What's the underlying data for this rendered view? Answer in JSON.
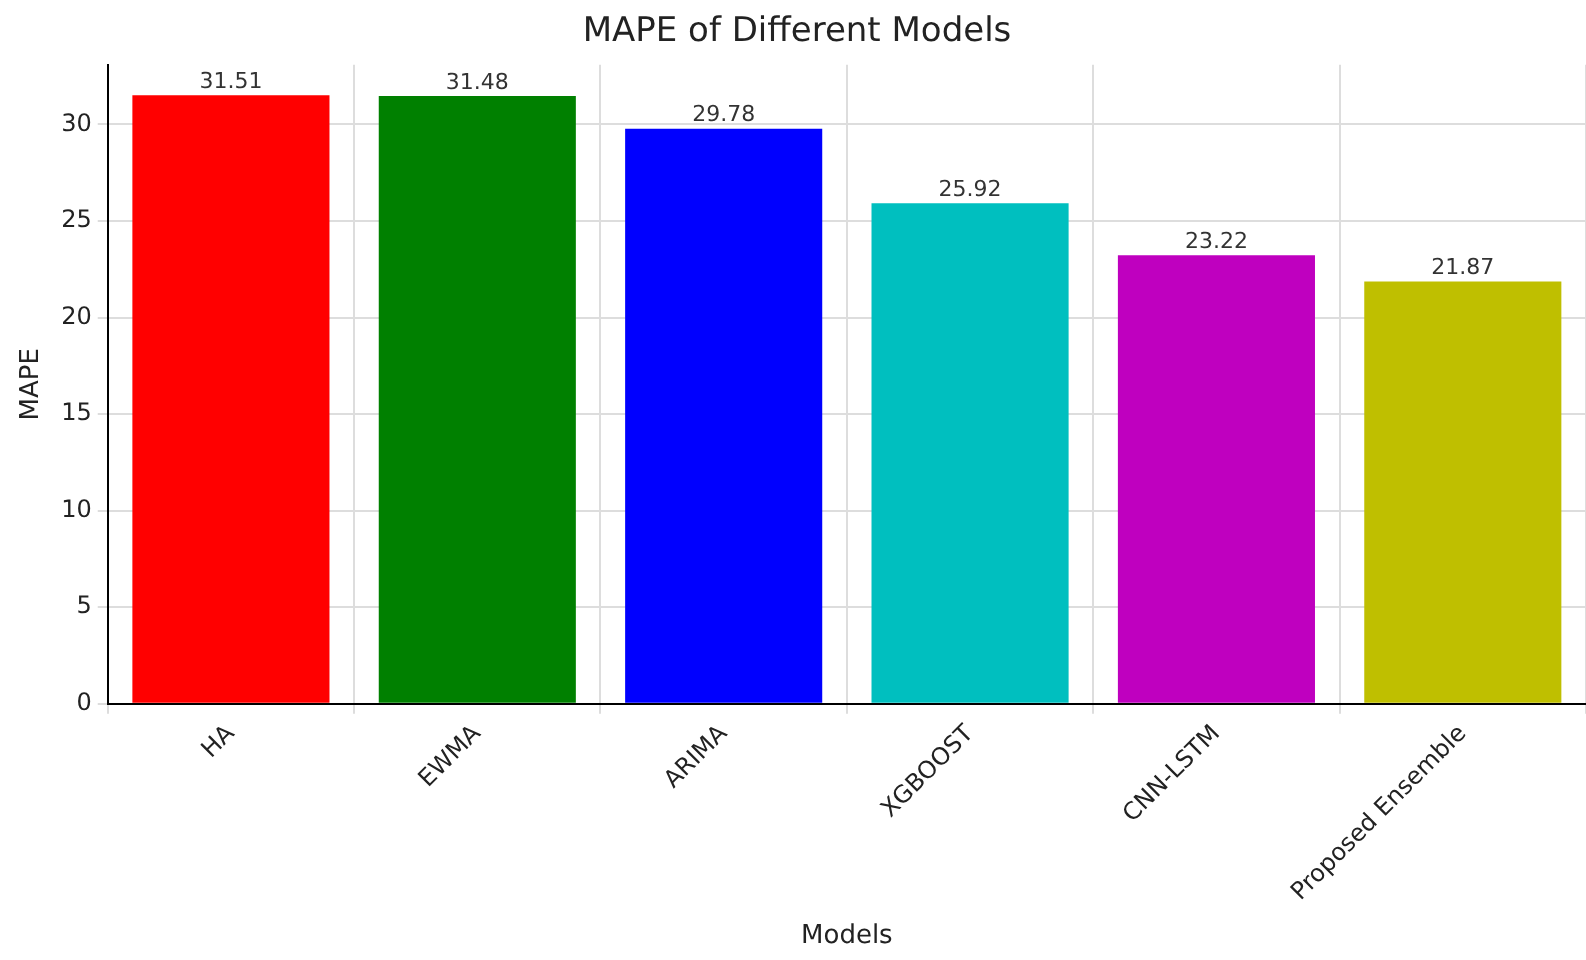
{
  "chart_data": {
    "type": "bar",
    "title": "MAPE of Different Models",
    "xlabel": "Models",
    "ylabel": "MAPE",
    "categories": [
      "HA",
      "EWMA",
      "ARIMA",
      "XGBOOST",
      "CNN-LSTM",
      "Proposed Ensemble"
    ],
    "values": [
      31.51,
      31.48,
      29.78,
      25.92,
      23.22,
      21.87
    ],
    "colors": [
      "#ff0000",
      "#008000",
      "#0000ff",
      "#00bfbf",
      "#bf00bf",
      "#bfbf00"
    ],
    "ylim": [
      0,
      33.09
    ],
    "yticks": [
      0,
      5,
      10,
      15,
      20,
      25,
      30
    ],
    "grid": true,
    "data_labels": true
  }
}
